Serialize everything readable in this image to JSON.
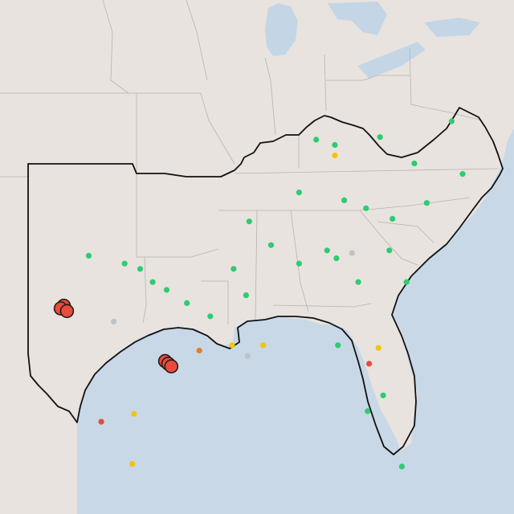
{
  "colors": {
    "land": "#e8e3df",
    "water": "#c8d8e7",
    "lake": "#c4d6e6",
    "state_border": "#b9b3ae",
    "region_border": "#111111",
    "status_good": "#2ecc71",
    "status_moderate": "#f1c40f",
    "status_elevated": "#e67e22",
    "status_high": "#e74c3c",
    "status_unknown": "#bdc3c7"
  },
  "markers": [
    {
      "lon": -100.3,
      "lat": 33.8,
      "status": "status_good"
    },
    {
      "lon": -98.0,
      "lat": 33.5,
      "status": "status_good"
    },
    {
      "lon": -97.0,
      "lat": 33.3,
      "status": "status_good"
    },
    {
      "lon": -96.2,
      "lat": 32.8,
      "status": "status_good"
    },
    {
      "lon": -95.3,
      "lat": 32.5,
      "status": "status_good"
    },
    {
      "lon": -94.0,
      "lat": 32.0,
      "status": "status_good"
    },
    {
      "lon": -92.5,
      "lat": 31.5,
      "status": "status_good"
    },
    {
      "lon": -91.0,
      "lat": 33.3,
      "status": "status_good"
    },
    {
      "lon": -90.2,
      "lat": 32.3,
      "status": "status_good"
    },
    {
      "lon": -88.6,
      "lat": 34.2,
      "status": "status_good"
    },
    {
      "lon": -86.8,
      "lat": 33.5,
      "status": "status_good"
    },
    {
      "lon": -85.0,
      "lat": 34.0,
      "status": "status_good"
    },
    {
      "lon": -84.4,
      "lat": 33.7,
      "status": "status_good"
    },
    {
      "lon": -83.0,
      "lat": 32.8,
      "status": "status_good"
    },
    {
      "lon": -81.0,
      "lat": 34.0,
      "status": "status_good"
    },
    {
      "lon": -79.9,
      "lat": 32.8,
      "status": "status_good"
    },
    {
      "lon": -80.8,
      "lat": 35.2,
      "status": "status_good"
    },
    {
      "lon": -78.6,
      "lat": 35.8,
      "status": "status_good"
    },
    {
      "lon": -77.0,
      "lat": 38.9,
      "status": "status_good"
    },
    {
      "lon": -76.3,
      "lat": 36.9,
      "status": "status_good"
    },
    {
      "lon": -86.8,
      "lat": 36.2,
      "status": "status_good"
    },
    {
      "lon": -85.7,
      "lat": 38.2,
      "status": "status_good"
    },
    {
      "lon": -84.5,
      "lat": 38.0,
      "status": "status_good"
    },
    {
      "lon": -83.9,
      "lat": 35.9,
      "status": "status_good"
    },
    {
      "lon": -82.5,
      "lat": 35.6,
      "status": "status_good"
    },
    {
      "lon": -81.6,
      "lat": 38.3,
      "status": "status_good"
    },
    {
      "lon": -79.4,
      "lat": 37.3,
      "status": "status_good"
    },
    {
      "lon": -90.0,
      "lat": 35.1,
      "status": "status_good"
    },
    {
      "lon": -82.4,
      "lat": 27.9,
      "status": "status_good"
    },
    {
      "lon": -81.4,
      "lat": 28.5,
      "status": "status_good"
    },
    {
      "lon": -80.2,
      "lat": 25.8,
      "status": "status_good"
    },
    {
      "lon": -84.3,
      "lat": 30.4,
      "status": "status_good"
    },
    {
      "lon": -81.7,
      "lat": 30.3,
      "status": "status_moderate"
    },
    {
      "lon": -89.1,
      "lat": 30.4,
      "status": "status_moderate"
    },
    {
      "lon": -91.1,
      "lat": 30.4,
      "status": "status_moderate"
    },
    {
      "lon": -93.2,
      "lat": 30.2,
      "status": "status_elevated"
    },
    {
      "lon": -97.4,
      "lat": 27.8,
      "status": "status_moderate"
    },
    {
      "lon": -97.5,
      "lat": 25.9,
      "status": "status_moderate"
    },
    {
      "lon": -99.5,
      "lat": 27.5,
      "status": "status_high"
    },
    {
      "lon": -82.3,
      "lat": 29.7,
      "status": "status_high"
    },
    {
      "lon": -84.5,
      "lat": 37.6,
      "status": "status_moderate"
    },
    {
      "lon": -90.1,
      "lat": 30.0,
      "status": "status_unknown"
    },
    {
      "lon": -83.4,
      "lat": 33.9,
      "status": "status_unknown"
    },
    {
      "lon": -98.7,
      "lat": 31.3,
      "status": "status_unknown"
    },
    {
      "lon": -95.4,
      "lat": 29.8,
      "status": "status_high",
      "size": "large"
    },
    {
      "lon": -95.2,
      "lat": 29.7,
      "status": "status_high",
      "size": "large"
    },
    {
      "lon": -95.0,
      "lat": 29.6,
      "status": "status_high",
      "size": "large"
    },
    {
      "lon": -101.9,
      "lat": 31.9,
      "status": "status_high",
      "size": "large"
    },
    {
      "lon": -102.1,
      "lat": 31.8,
      "status": "status_high",
      "size": "large"
    },
    {
      "lon": -101.7,
      "lat": 31.7,
      "status": "status_high",
      "size": "large"
    }
  ]
}
